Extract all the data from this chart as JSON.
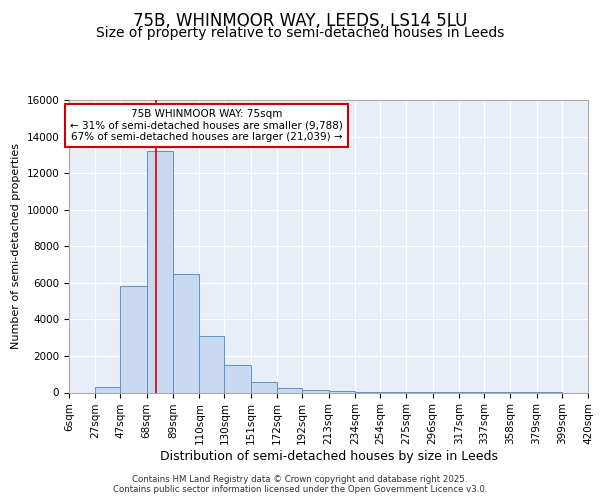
{
  "title": "75B, WHINMOOR WAY, LEEDS, LS14 5LU",
  "subtitle": "Size of property relative to semi-detached houses in Leeds",
  "xlabel": "Distribution of semi-detached houses by size in Leeds",
  "ylabel": "Number of semi-detached properties",
  "footer_line1": "Contains HM Land Registry data © Crown copyright and database right 2025.",
  "footer_line2": "Contains public sector information licensed under the Open Government Licence v3.0.",
  "annotation_title": "75B WHINMOOR WAY: 75sqm",
  "annotation_line1": "← 31% of semi-detached houses are smaller (9,788)",
  "annotation_line2": "67% of semi-detached houses are larger (21,039) →",
  "property_size": 75,
  "bin_edges": [
    6,
    27,
    47,
    68,
    89,
    110,
    130,
    151,
    172,
    192,
    213,
    234,
    254,
    275,
    296,
    317,
    337,
    358,
    379,
    399,
    420
  ],
  "bar_heights": [
    0,
    300,
    5800,
    13200,
    6500,
    3100,
    1500,
    600,
    250,
    150,
    80,
    30,
    15,
    10,
    5,
    5,
    2,
    2,
    2,
    0
  ],
  "bar_color": "#c8d8f0",
  "bar_edge_color": "#6090c8",
  "red_line_color": "#cc0000",
  "annotation_box_color": "#cc0000",
  "plot_bg_color": "#e8eef8",
  "figure_bg_color": "#ffffff",
  "grid_color": "#ffffff",
  "ylim": [
    0,
    16000
  ],
  "yticks": [
    0,
    2000,
    4000,
    6000,
    8000,
    10000,
    12000,
    14000,
    16000
  ],
  "title_fontsize": 12,
  "subtitle_fontsize": 10,
  "tick_fontsize": 7.5,
  "ylabel_fontsize": 8,
  "xlabel_fontsize": 9
}
